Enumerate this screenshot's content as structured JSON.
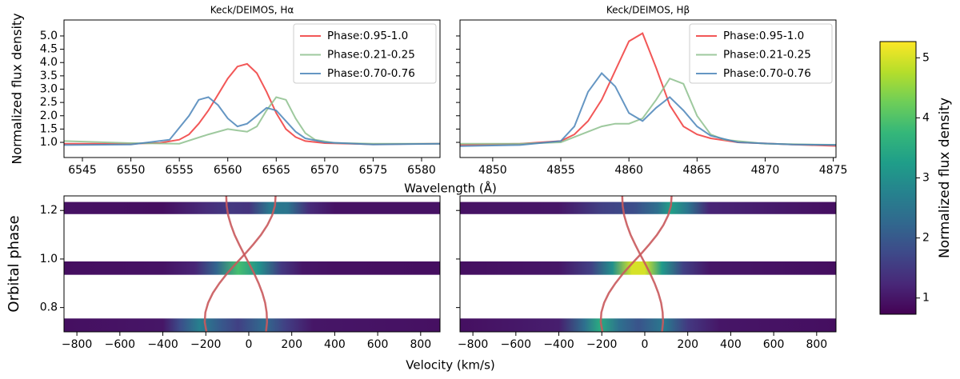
{
  "chart_data": [
    {
      "type": "line",
      "title": "Keck/DEIMOS, Hα",
      "ylabel": "Normalized flux density",
      "xlabel": "Wavelength (Å)",
      "xlim": [
        6543.1,
        6581.9
      ],
      "ylim": [
        0.43,
        5.6
      ],
      "xticks": [
        6545,
        6550,
        6555,
        6560,
        6565,
        6570,
        6575,
        6580
      ],
      "yticks": [
        {
          "value": 1.0,
          "label": "1.0"
        },
        {
          "value": 1.5,
          "label": "1.5"
        },
        {
          "value": 2.0,
          "label": "2.0"
        },
        {
          "value": 2.5,
          "label": "2.5"
        },
        {
          "value": 3.0,
          "label": "3.0"
        },
        {
          "value": 3.5,
          "label": "3.5"
        },
        {
          "value": 4.0,
          "label": "4.0"
        },
        {
          "value": 4.5,
          "label": "4.5"
        },
        {
          "value": 5.0,
          "label": "5.0"
        }
      ],
      "show_ytick_labels": true,
      "legend": "upper right",
      "series": [
        {
          "name": "Phase:0.95-1.0",
          "color": "#f03a3a",
          "x": [
            6543,
            6550,
            6553,
            6555,
            6556,
            6557,
            6558,
            6559,
            6560,
            6561,
            6562,
            6563,
            6564,
            6565,
            6566,
            6567,
            6568,
            6570,
            6575,
            6582
          ],
          "values": [
            0.95,
            0.95,
            0.98,
            1.1,
            1.3,
            1.7,
            2.2,
            2.8,
            3.4,
            3.85,
            3.95,
            3.6,
            2.9,
            2.1,
            1.5,
            1.2,
            1.05,
            0.97,
            0.93,
            0.95
          ]
        },
        {
          "name": "Phase:0.21-0.25",
          "color": "#8dc08d",
          "x": [
            6543,
            6550,
            6555,
            6558,
            6560,
            6561,
            6562,
            6563,
            6564,
            6565,
            6566,
            6567,
            6568,
            6569,
            6571,
            6575,
            6582
          ],
          "values": [
            1.05,
            0.97,
            0.95,
            1.3,
            1.5,
            1.45,
            1.4,
            1.6,
            2.2,
            2.7,
            2.6,
            1.9,
            1.35,
            1.1,
            0.98,
            0.95,
            0.95
          ]
        },
        {
          "name": "Phase:0.70-0.76",
          "color": "#4a84b8",
          "x": [
            6543,
            6550,
            6554,
            6556,
            6557,
            6558,
            6559,
            6560,
            6561,
            6562,
            6563,
            6564,
            6565,
            6566,
            6567,
            6568,
            6570,
            6575,
            6582
          ],
          "values": [
            0.9,
            0.92,
            1.1,
            2.0,
            2.6,
            2.7,
            2.4,
            1.9,
            1.6,
            1.7,
            2.0,
            2.3,
            2.2,
            1.8,
            1.4,
            1.15,
            1.0,
            0.92,
            0.95
          ]
        }
      ]
    },
    {
      "type": "line",
      "title": "Keck/DEIMOS, Hβ",
      "xlim": [
        4847.6,
        4875.2
      ],
      "ylim": [
        0.43,
        5.6
      ],
      "xticks": [
        4850,
        4855,
        4860,
        4865,
        4870,
        4875
      ],
      "yticks": [
        1,
        1.5,
        2,
        2.5,
        3,
        3.5,
        4,
        4.5,
        5
      ],
      "show_ytick_labels": false,
      "legend": "upper right",
      "series": [
        {
          "name": "Phase:0.95-1.0",
          "color": "#f03a3a",
          "x": [
            4847,
            4852,
            4855,
            4856,
            4857,
            4858,
            4859,
            4860,
            4861,
            4862,
            4863,
            4864,
            4865,
            4866,
            4868,
            4872,
            4876
          ],
          "values": [
            0.9,
            0.95,
            1.05,
            1.3,
            1.8,
            2.6,
            3.7,
            4.8,
            5.1,
            3.8,
            2.4,
            1.6,
            1.3,
            1.15,
            1.0,
            0.92,
            0.85
          ]
        },
        {
          "name": "Phase:0.21-0.25",
          "color": "#8dc08d",
          "x": [
            4847,
            4852,
            4855,
            4857,
            4858,
            4859,
            4860,
            4861,
            4862,
            4863,
            4864,
            4865,
            4866,
            4867,
            4870,
            4876
          ],
          "values": [
            0.95,
            0.95,
            1.0,
            1.4,
            1.6,
            1.7,
            1.7,
            1.9,
            2.6,
            3.4,
            3.2,
            2.0,
            1.3,
            1.1,
            0.95,
            0.9
          ]
        },
        {
          "name": "Phase:0.70-0.76",
          "color": "#4a84b8",
          "x": [
            4847,
            4852,
            4855,
            4856,
            4857,
            4858,
            4859,
            4860,
            4861,
            4862,
            4863,
            4864,
            4865,
            4866,
            4868,
            4872,
            4876
          ],
          "values": [
            0.85,
            0.9,
            1.05,
            1.6,
            2.9,
            3.6,
            3.1,
            2.1,
            1.8,
            2.3,
            2.7,
            2.2,
            1.6,
            1.25,
            1.0,
            0.92,
            0.9
          ]
        }
      ]
    },
    {
      "type": "heatmap",
      "ylabel": "Orbital phase",
      "xlabel": "Velocity (km/s)",
      "xlim": [
        -860,
        890
      ],
      "ylim": [
        0.7,
        1.26
      ],
      "xticks": [
        {
          "value": -800,
          "label": "−800"
        },
        {
          "value": -600,
          "label": "−600"
        },
        {
          "value": -400,
          "label": "−400"
        },
        {
          "value": -200,
          "label": "−200"
        },
        0,
        200,
        400,
        600,
        800
      ],
      "yticks": [
        0.8,
        {
          "value": 1.0,
          "label": "1.0"
        },
        1.2
      ],
      "show_ytick_labels": true,
      "strips": [
        {
          "phase_range": [
            0.935,
            0.99
          ],
          "velocity": [
            -900,
            -400,
            -250,
            -150,
            -50,
            50,
            150,
            250,
            400,
            900
          ],
          "values": [
            0.9,
            0.95,
            1.2,
            2.2,
            3.9,
            3.0,
            1.5,
            1.0,
            0.92,
            0.9
          ]
        },
        {
          "phase_range": [
            1.185,
            1.235
          ],
          "velocity": [
            -900,
            -400,
            -200,
            -100,
            0,
            100,
            180,
            280,
            400,
            900
          ],
          "values": [
            0.95,
            0.9,
            1.3,
            1.5,
            1.4,
            2.6,
            2.5,
            1.3,
            0.95,
            0.95
          ]
        },
        {
          "phase_range": [
            0.695,
            0.755
          ],
          "velocity": [
            -900,
            -400,
            -320,
            -230,
            -130,
            -50,
            70,
            170,
            300,
            900
          ],
          "values": [
            0.9,
            1.0,
            1.8,
            2.7,
            2.0,
            1.6,
            2.3,
            1.6,
            1.0,
            0.92
          ]
        }
      ],
      "curves": [
        {
          "color": "#c9595c",
          "phase": [
            0.7,
            0.74,
            0.78,
            0.82,
            0.86,
            0.9,
            0.94,
            0.98,
            1.02,
            1.06,
            1.1,
            1.14,
            1.18,
            1.22,
            1.26
          ],
          "velocity": [
            -197,
            -205,
            -202,
            -189,
            -167,
            -137,
            -101,
            -61,
            -19,
            21,
            57,
            87,
            109,
            122,
            125
          ]
        },
        {
          "color": "#c9595c",
          "phase": [
            0.7,
            0.74,
            0.78,
            0.82,
            0.86,
            0.9,
            0.94,
            0.98,
            1.02,
            1.06,
            1.1,
            1.14,
            1.18,
            1.22,
            1.26
          ],
          "velocity": [
            80,
            85,
            83,
            76,
            63,
            46,
            25,
            2,
            -22,
            -45,
            -66,
            -83,
            -96,
            -103,
            -105
          ]
        }
      ]
    },
    {
      "type": "heatmap",
      "xlim": [
        -860,
        890
      ],
      "ylim": [
        0.7,
        1.26
      ],
      "xticks": [
        {
          "value": -800,
          "label": "−800"
        },
        {
          "value": -600,
          "label": "−600"
        },
        {
          "value": -400,
          "label": "−400"
        },
        {
          "value": -200,
          "label": "−200"
        },
        0,
        200,
        400,
        600,
        800
      ],
      "yticks": [
        0.8,
        1,
        1.2
      ],
      "show_ytick_labels": false,
      "strips": [
        {
          "phase_range": [
            0.935,
            0.99
          ],
          "velocity": [
            -900,
            -400,
            -250,
            -150,
            -60,
            0,
            80,
            180,
            300,
            900
          ],
          "values": [
            0.9,
            1.0,
            1.6,
            3.0,
            5.0,
            5.0,
            3.2,
            1.6,
            1.0,
            0.9
          ]
        },
        {
          "phase_range": [
            1.185,
            1.235
          ],
          "velocity": [
            -900,
            -400,
            -200,
            -50,
            60,
            120,
            200,
            300,
            900
          ],
          "values": [
            0.95,
            1.0,
            1.6,
            1.8,
            2.4,
            3.3,
            2.5,
            1.2,
            0.9
          ]
        },
        {
          "phase_range": [
            0.695,
            0.755
          ],
          "velocity": [
            -900,
            -400,
            -280,
            -210,
            -120,
            -30,
            90,
            200,
            350,
            900
          ],
          "values": [
            0.9,
            1.1,
            2.4,
            3.5,
            2.4,
            1.9,
            2.6,
            1.5,
            1.0,
            0.9
          ]
        }
      ],
      "curves": [
        {
          "color": "#c9595c",
          "phase": [
            0.7,
            0.74,
            0.78,
            0.82,
            0.86,
            0.9,
            0.94,
            0.98,
            1.02,
            1.06,
            1.1,
            1.14,
            1.18,
            1.22,
            1.26
          ],
          "velocity": [
            -197,
            -205,
            -202,
            -189,
            -167,
            -137,
            -101,
            -61,
            -19,
            21,
            57,
            87,
            109,
            122,
            125
          ]
        },
        {
          "color": "#c9595c",
          "phase": [
            0.7,
            0.74,
            0.78,
            0.82,
            0.86,
            0.9,
            0.94,
            0.98,
            1.02,
            1.06,
            1.1,
            1.14,
            1.18,
            1.22,
            1.26
          ],
          "velocity": [
            80,
            85,
            83,
            76,
            63,
            46,
            25,
            2,
            -22,
            -45,
            -66,
            -83,
            -96,
            -103,
            -105
          ]
        }
      ]
    }
  ],
  "colorbar": {
    "label": "Normalized flux density",
    "lim": [
      0.73,
      5.27
    ],
    "ticks": [
      1,
      2,
      3,
      4,
      5
    ],
    "colormap": [
      "#440154",
      "#482878",
      "#3e4989",
      "#31688e",
      "#26828e",
      "#1f9e89",
      "#35b779",
      "#6ece58",
      "#b5de2b",
      "#fde725"
    ]
  }
}
